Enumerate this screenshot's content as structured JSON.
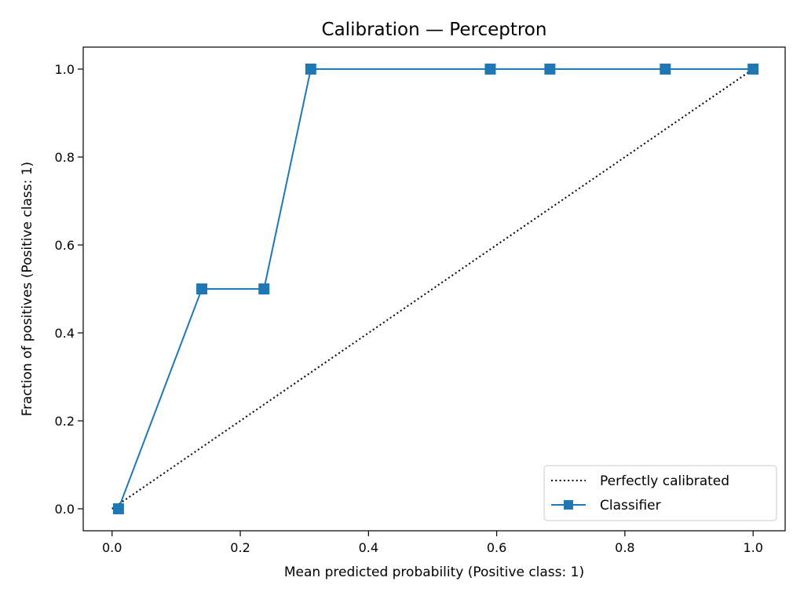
{
  "chart_data": {
    "type": "line",
    "title": "Calibration — Perceptron",
    "xlabel": "Mean predicted probability (Positive class: 1)",
    "ylabel": "Fraction of positives (Positive class: 1)",
    "xlim": [
      -0.045,
      1.05
    ],
    "ylim": [
      -0.05,
      1.05
    ],
    "xticks": [
      0.0,
      0.2,
      0.4,
      0.6,
      0.8,
      1.0
    ],
    "yticks": [
      0.0,
      0.2,
      0.4,
      0.6,
      0.8,
      1.0
    ],
    "xtick_labels": [
      "0.0",
      "0.2",
      "0.4",
      "0.6",
      "0.8",
      "1.0"
    ],
    "ytick_labels": [
      "0.0",
      "0.2",
      "0.4",
      "0.6",
      "0.8",
      "1.0"
    ],
    "grid": false,
    "legend_position": "lower-right",
    "series": [
      {
        "name": "Perfectly calibrated",
        "style": "dotted",
        "color": "#000000",
        "x": [
          0,
          1
        ],
        "y": [
          0,
          1
        ]
      },
      {
        "name": "Classifier",
        "style": "solid",
        "marker": "square",
        "color": "#1f77b4",
        "x": [
          0.01,
          0.14,
          0.237,
          0.31,
          0.59,
          0.683,
          0.863,
          1.0
        ],
        "y": [
          0.0,
          0.5,
          0.5,
          1.0,
          1.0,
          1.0,
          1.0,
          1.0
        ]
      }
    ]
  }
}
